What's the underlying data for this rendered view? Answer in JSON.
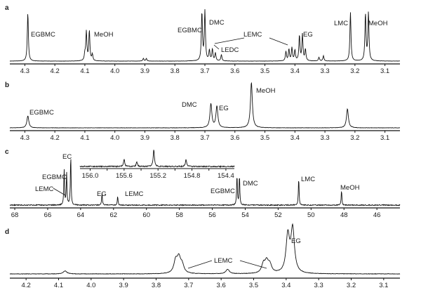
{
  "chart_data": [
    {
      "panel": "a",
      "type": "line",
      "x_axis": {
        "ticks": [
          "4.3",
          "4.2",
          "4.1",
          "4.0",
          "3.9",
          "3.8",
          "3.7",
          "3.6",
          "3.5",
          "3.4",
          "3.3",
          "3.2",
          "3.1"
        ],
        "range": [
          4.35,
          3.05
        ],
        "reversed": true
      },
      "peak_labels": [
        "EGBMC",
        "MeOH",
        "EGBMC",
        "DMC",
        "LEDC",
        "LEMC",
        "EG",
        "LMC",
        "MeOH"
      ],
      "peaks": [
        {
          "x": 4.29,
          "h": 0.92
        },
        {
          "x": 4.1,
          "h": 0.12
        },
        {
          "x": 4.095,
          "h": 0.55
        },
        {
          "x": 4.085,
          "h": 0.57
        },
        {
          "x": 4.075,
          "h": 0.12
        },
        {
          "x": 3.905,
          "h": 0.05
        },
        {
          "x": 3.895,
          "h": 0.05
        },
        {
          "x": 3.71,
          "h": 0.92
        },
        {
          "x": 3.7,
          "h": 0.94
        },
        {
          "x": 3.685,
          "h": 0.2
        },
        {
          "x": 3.675,
          "h": 0.22
        },
        {
          "x": 3.665,
          "h": 0.15
        },
        {
          "x": 3.645,
          "h": 0.12
        },
        {
          "x": 3.43,
          "h": 0.18
        },
        {
          "x": 3.42,
          "h": 0.22
        },
        {
          "x": 3.41,
          "h": 0.25
        },
        {
          "x": 3.4,
          "h": 0.2
        },
        {
          "x": 3.385,
          "h": 0.48
        },
        {
          "x": 3.375,
          "h": 0.5
        },
        {
          "x": 3.365,
          "h": 0.22
        },
        {
          "x": 3.32,
          "h": 0.07
        },
        {
          "x": 3.305,
          "h": 0.1
        },
        {
          "x": 3.215,
          "h": 0.93
        },
        {
          "x": 3.165,
          "h": 0.89
        },
        {
          "x": 3.155,
          "h": 0.91
        }
      ]
    },
    {
      "panel": "b",
      "type": "line",
      "x_axis": {
        "ticks": [
          "4.3",
          "4.2",
          "4.1",
          "4.0",
          "3.9",
          "3.8",
          "3.7",
          "3.6",
          "3.5",
          "3.4",
          "3.3",
          "3.2",
          "3.1"
        ],
        "range": [
          4.35,
          3.05
        ],
        "reversed": true
      },
      "peak_labels": [
        "EGBMC",
        "DMC",
        "EG",
        "MeOH"
      ],
      "peaks": [
        {
          "x": 4.29,
          "h": 0.25
        },
        {
          "x": 3.68,
          "h": 0.5
        },
        {
          "x": 3.66,
          "h": 0.45
        },
        {
          "x": 3.545,
          "h": 0.95
        },
        {
          "x": 3.225,
          "h": 0.4
        }
      ]
    },
    {
      "panel": "c",
      "type": "line",
      "x_axis": {
        "ticks": [
          "68",
          "66",
          "64",
          "62",
          "60",
          "58",
          "56",
          "54",
          "52",
          "50",
          "48",
          "46"
        ],
        "range": [
          68.3,
          44.6
        ],
        "reversed": true
      },
      "peak_labels": [
        "EC",
        "EGBMC",
        "LEMC",
        "EG",
        "LEMC",
        "EGBMC",
        "DMC",
        "LMC",
        "MeOH"
      ],
      "peaks": [
        {
          "x": 65.0,
          "h": 0.7
        },
        {
          "x": 64.85,
          "h": 0.65
        },
        {
          "x": 64.6,
          "h": 1.0
        },
        {
          "x": 62.7,
          "h": 0.25
        },
        {
          "x": 61.75,
          "h": 0.18
        },
        {
          "x": 54.5,
          "h": 0.6
        },
        {
          "x": 54.35,
          "h": 0.6
        },
        {
          "x": 50.75,
          "h": 0.55
        },
        {
          "x": 48.15,
          "h": 0.3
        }
      ],
      "inset": {
        "x_axis": {
          "ticks": [
            "156.0",
            "155.8",
            "155.6",
            "155.4",
            "155.2",
            "155.0",
            "154.8",
            "154.6",
            "154.4"
          ],
          "labeled_ticks": [
            "156.0",
            "155.6",
            "155.2",
            "154.8",
            "154.4"
          ],
          "range": [
            156.12,
            154.3
          ],
          "reversed": true
        },
        "peaks": [
          {
            "x": 155.6,
            "h": 0.4
          },
          {
            "x": 155.45,
            "h": 0.25
          },
          {
            "x": 155.25,
            "h": 0.95
          },
          {
            "x": 154.87,
            "h": 0.4
          }
        ]
      }
    },
    {
      "panel": "d",
      "type": "line",
      "x_axis": {
        "ticks": [
          "4.2",
          "4.1",
          "4.0",
          "3.9",
          "3.8",
          "3.7",
          "3.6",
          "3.5",
          "3.4",
          "3.3",
          "3.2",
          "3.1"
        ],
        "range": [
          4.25,
          3.05
        ],
        "reversed": true
      },
      "peak_labels": [
        "LEMC",
        "EG"
      ],
      "peaks": [
        {
          "x": 4.08,
          "h": 0.07
        },
        {
          "x": 3.74,
          "h": 0.28
        },
        {
          "x": 3.73,
          "h": 0.33
        },
        {
          "x": 3.72,
          "h": 0.18
        },
        {
          "x": 3.58,
          "h": 0.1
        },
        {
          "x": 3.47,
          "h": 0.2
        },
        {
          "x": 3.46,
          "h": 0.25
        },
        {
          "x": 3.45,
          "h": 0.18
        },
        {
          "x": 3.395,
          "h": 0.85
        },
        {
          "x": 3.38,
          "h": 1.0
        }
      ]
    }
  ]
}
